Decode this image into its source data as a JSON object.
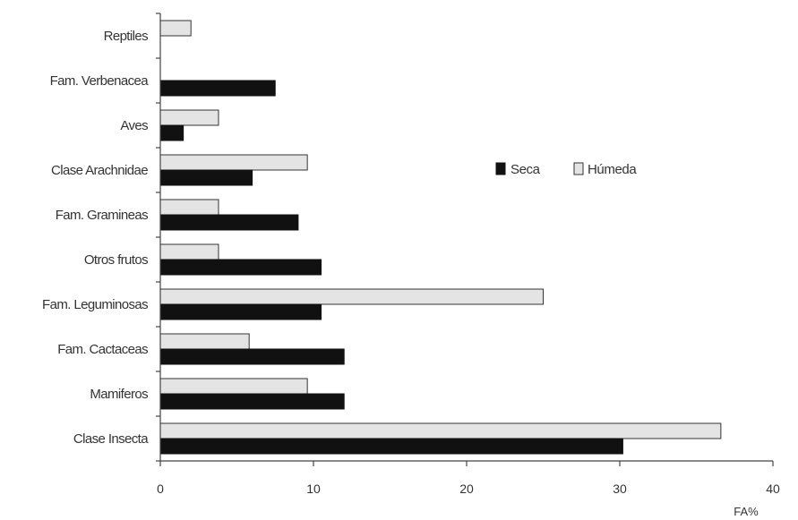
{
  "chart_data": {
    "type": "bar",
    "orientation": "horizontal",
    "categories": [
      "Reptiles",
      "Fam. Verbenacea",
      "Aves",
      "Clase Arachnidae",
      "Fam. Gramineas",
      "Otros frutos",
      "Fam. Leguminosas",
      "Fam. Cactaceas",
      "Mamiferos",
      "Clase Insecta"
    ],
    "series": [
      {
        "name": "Seca",
        "color": "#111111",
        "values": [
          0,
          7.5,
          1.5,
          6,
          9,
          10.5,
          10.5,
          12,
          12,
          30.2
        ]
      },
      {
        "name": "Húmeda",
        "color": "#e4e4e4",
        "values": [
          2,
          0,
          3.8,
          9.6,
          3.8,
          3.8,
          25,
          5.8,
          9.6,
          36.6
        ]
      }
    ],
    "xlabel": "FA%",
    "xlim": [
      0,
      40
    ],
    "xticks": [
      0,
      10,
      20,
      30,
      40
    ],
    "grid": false,
    "legend_position": "right"
  }
}
